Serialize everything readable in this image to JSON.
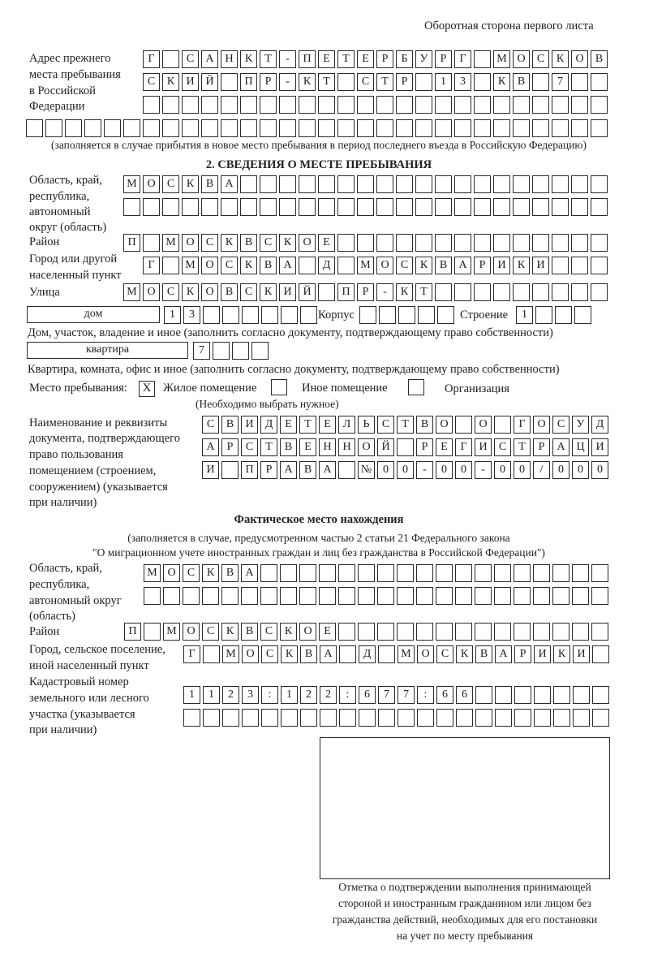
{
  "header": {
    "page_note": "Оборотная сторона первого листа"
  },
  "previous_address": {
    "label": [
      "Адрес прежнего",
      "места пребывания",
      "в Российской",
      "Федерации"
    ],
    "rows": [
      [
        "Г",
        "",
        "С",
        "А",
        "Н",
        "К",
        "Т",
        "-",
        "П",
        "Е",
        "Т",
        "Е",
        "Р",
        "Б",
        "У",
        "Р",
        "Г",
        "",
        "М",
        "О",
        "С",
        "К",
        "О",
        "В"
      ],
      [
        "С",
        "К",
        "И",
        "Й",
        "",
        "П",
        "Р",
        "-",
        "К",
        "Т",
        "",
        "С",
        "Т",
        "Р",
        "",
        "1",
        "3",
        "",
        "К",
        "В",
        "",
        "7",
        "",
        ""
      ],
      [
        "",
        "",
        "",
        "",
        "",
        "",
        "",
        "",
        "",
        "",
        "",
        "",
        "",
        "",
        "",
        "",
        "",
        "",
        "",
        "",
        "",
        "",
        "",
        ""
      ],
      [
        "",
        "",
        "",
        "",
        "",
        "",
        "",
        "",
        "",
        "",
        "",
        "",
        "",
        "",
        "",
        "",
        "",
        "",
        "",
        "",
        "",
        "",
        "",
        "",
        "",
        "",
        "",
        "",
        "",
        ""
      ]
    ],
    "note": "(заполняется в случае прибытия в новое место пребывания в период последнего въезда в Российскую Федерацию)"
  },
  "section2": {
    "title": "2. СВЕДЕНИЯ О МЕСТЕ ПРЕБЫВАНИЯ",
    "region": {
      "label": [
        "Область, край,",
        "республика,",
        "автономный",
        "округ (область)"
      ],
      "rows": [
        [
          "М",
          "О",
          "С",
          "К",
          "В",
          "А",
          "",
          "",
          "",
          "",
          "",
          "",
          "",
          "",
          "",
          "",
          "",
          "",
          "",
          "",
          "",
          "",
          "",
          "",
          ""
        ],
        [
          "",
          "",
          "",
          "",
          "",
          "",
          "",
          "",
          "",
          "",
          "",
          "",
          "",
          "",
          "",
          "",
          "",
          "",
          "",
          "",
          "",
          "",
          "",
          "",
          ""
        ]
      ]
    },
    "district": {
      "label": "Район",
      "cells": [
        "П",
        "",
        "М",
        "О",
        "С",
        "К",
        "В",
        "С",
        "К",
        "О",
        "Е",
        "",
        "",
        "",
        "",
        "",
        "",
        "",
        "",
        "",
        "",
        "",
        "",
        "",
        ""
      ]
    },
    "city": {
      "label": [
        "Город или другой",
        "населенный пункт"
      ],
      "cells": [
        "Г",
        "",
        "М",
        "О",
        "С",
        "К",
        "В",
        "А",
        "",
        "Д",
        "",
        "М",
        "О",
        "С",
        "К",
        "В",
        "А",
        "Р",
        "И",
        "К",
        "И",
        "",
        "",
        ""
      ]
    },
    "street": {
      "label": "Улица",
      "cells": [
        "М",
        "О",
        "С",
        "К",
        "О",
        "В",
        "С",
        "К",
        "И",
        "Й",
        "",
        "П",
        "Р",
        "-",
        "К",
        "Т",
        "",
        "",
        "",
        "",
        "",
        "",
        "",
        "",
        ""
      ]
    },
    "house": {
      "type": "дом",
      "cells": [
        "1",
        "3",
        "",
        "",
        "",
        "",
        "",
        ""
      ],
      "korpus_label": "Корпус",
      "korpus_cells": [
        "",
        "",
        "",
        "",
        ""
      ],
      "building_label": "Строение",
      "building_cells": [
        "1",
        "",
        "",
        ""
      ],
      "note": "Дом, участок, владение и иное (заполнить согласно документу, подтверждающему право собственности)"
    },
    "apartment": {
      "type": "квартира",
      "cells": [
        "7",
        "",
        "",
        ""
      ],
      "note": "Квартира, комната, офис и иное (заполнить согласно документу, подтверждающему право собственности)"
    },
    "place_type": {
      "label": "Место пребывания:",
      "options": [
        {
          "label": "Жилое помещение",
          "mark": "X"
        },
        {
          "label": "Иное помещение",
          "mark": ""
        },
        {
          "label": "Организация",
          "mark": ""
        }
      ],
      "hint": "(Необходимо выбрать нужное)"
    },
    "document": {
      "label": [
        "Наименование и реквизиты",
        "документа, подтверждающего",
        "право пользования",
        "помещением (строением,",
        "сооружением) (указывается",
        "при наличии)"
      ],
      "rows": [
        [
          "С",
          "В",
          "И",
          "Д",
          "Е",
          "Т",
          "Е",
          "Л",
          "Ь",
          "С",
          "Т",
          "В",
          "О",
          "",
          "О",
          "",
          "Г",
          "О",
          "С",
          "У",
          "Д"
        ],
        [
          "А",
          "Р",
          "С",
          "Т",
          "В",
          "Е",
          "Н",
          "Н",
          "О",
          "Й",
          "",
          "Р",
          "Е",
          "Г",
          "И",
          "С",
          "Т",
          "Р",
          "А",
          "Ц",
          "И"
        ],
        [
          "И",
          "",
          "П",
          "Р",
          "А",
          "В",
          "А",
          "",
          "№",
          "0",
          "0",
          "-",
          "0",
          "0",
          "-",
          "0",
          "0",
          "/",
          "0",
          "0",
          "0"
        ]
      ]
    }
  },
  "actual_location": {
    "title": "Фактическое место нахождения",
    "subtitle": [
      "(заполняется в случае, предусмотренном частью 2 статьи 21 Федерального закона",
      "\"О миграционном учете иностранных граждан и лиц без гражданства в Российской Федерации\")"
    ],
    "region": {
      "label": [
        "Область, край,",
        "республика,",
        "автономный округ",
        "(область)"
      ],
      "rows": [
        [
          "М",
          "О",
          "С",
          "К",
          "В",
          "А",
          "",
          "",
          "",
          "",
          "",
          "",
          "",
          "",
          "",
          "",
          "",
          "",
          "",
          "",
          "",
          "",
          "",
          ""
        ],
        [
          "",
          "",
          "",
          "",
          "",
          "",
          "",
          "",
          "",
          "",
          "",
          "",
          "",
          "",
          "",
          "",
          "",
          "",
          "",
          "",
          "",
          "",
          "",
          ""
        ]
      ]
    },
    "district": {
      "label": "Район",
      "cells": [
        "П",
        "",
        "М",
        "О",
        "С",
        "К",
        "В",
        "С",
        "К",
        "О",
        "Е",
        "",
        "",
        "",
        "",
        "",
        "",
        "",
        "",
        "",
        "",
        "",
        "",
        "",
        ""
      ]
    },
    "city": {
      "label": [
        "Город, сельское поселение,",
        "иной населенный пункт"
      ],
      "cells": [
        "Г",
        "",
        "М",
        "О",
        "С",
        "К",
        "В",
        "А",
        "",
        "Д",
        "",
        "М",
        "О",
        "С",
        "К",
        "В",
        "А",
        "Р",
        "И",
        "К",
        "И",
        ""
      ]
    },
    "cadastral": {
      "label": [
        "Кадастровый номер",
        "земельного или лесного",
        "участка (указывается",
        "при наличии)"
      ],
      "rows": [
        [
          "1",
          "1",
          "2",
          "3",
          ":",
          "1",
          "2",
          "2",
          ":",
          "6",
          "7",
          "7",
          ":",
          "6",
          "6",
          "",
          "",
          "",
          "",
          "",
          "",
          ""
        ],
        [
          "",
          "",
          "",
          "",
          "",
          "",
          "",
          "",
          "",
          "",
          "",
          "",
          "",
          "",
          "",
          "",
          "",
          "",
          "",
          "",
          "",
          ""
        ]
      ]
    }
  },
  "stamp": {
    "caption": [
      "Отметка о подтверждении выполнения принимающей",
      "стороной и иностранным гражданином или лицом без",
      "гражданства действий, необходимых для его постановки",
      "на учет по месту пребывания"
    ]
  }
}
